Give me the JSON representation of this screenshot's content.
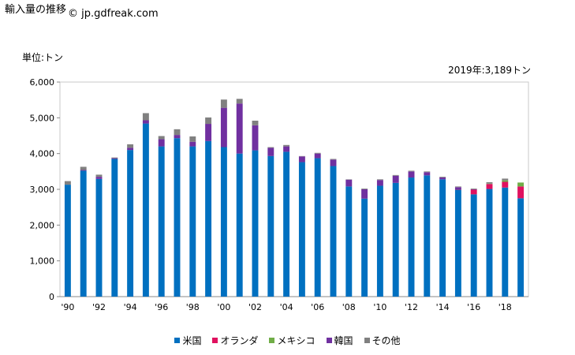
{
  "page": {
    "title": "輸入量の推移",
    "watermark": "© jp.gdfreak.com",
    "unit_label": "単位:トン",
    "latest_note": "2019年:3,189トン"
  },
  "chart_data": {
    "type": "bar",
    "stacked": true,
    "ylim": [
      0,
      6000
    ],
    "yticks": [
      "0",
      "1,000",
      "2,000",
      "3,000",
      "4,000",
      "5,000",
      "6,000"
    ],
    "ytick_values": [
      0,
      1000,
      2000,
      3000,
      4000,
      5000,
      6000
    ],
    "categories": [
      1990,
      1991,
      1992,
      1993,
      1994,
      1995,
      1996,
      1997,
      1998,
      1999,
      2000,
      2001,
      2002,
      2003,
      2004,
      2005,
      2006,
      2007,
      2008,
      2009,
      2010,
      2011,
      2012,
      2013,
      2014,
      2015,
      2016,
      2017,
      2018,
      2019
    ],
    "xtick_labels": [
      "'90",
      "'92",
      "'94",
      "'96",
      "'98",
      "'00",
      "'02",
      "'04",
      "'06",
      "'08",
      "'10",
      "'12",
      "'14",
      "'16",
      "'18"
    ],
    "xtick_years": [
      1990,
      1992,
      1994,
      1996,
      1998,
      2000,
      2002,
      2004,
      2006,
      2008,
      2010,
      2012,
      2014,
      2016,
      2018
    ],
    "legend_position": "bottom",
    "grid": false,
    "series": [
      {
        "name": "米国",
        "color": "#0070c0",
        "values": [
          3130,
          3520,
          3290,
          3850,
          4100,
          4840,
          4200,
          4430,
          4200,
          4350,
          4180,
          4000,
          4090,
          3930,
          4050,
          3760,
          3870,
          3650,
          3080,
          2740,
          3100,
          3180,
          3330,
          3390,
          3280,
          2990,
          2860,
          3010,
          3050,
          2750
        ]
      },
      {
        "name": "オランダ",
        "color": "#e0115f",
        "values": [
          0,
          0,
          0,
          0,
          0,
          0,
          0,
          0,
          0,
          0,
          0,
          0,
          0,
          0,
          0,
          0,
          0,
          0,
          0,
          0,
          0,
          0,
          0,
          0,
          0,
          10,
          130,
          140,
          160,
          330
        ]
      },
      {
        "name": "メキシコ",
        "color": "#70ad47",
        "values": [
          0,
          0,
          0,
          0,
          0,
          0,
          0,
          0,
          0,
          0,
          0,
          0,
          0,
          0,
          0,
          0,
          0,
          0,
          0,
          0,
          0,
          0,
          0,
          0,
          0,
          0,
          0,
          10,
          40,
          110
        ]
      },
      {
        "name": "韓国",
        "color": "#7030a0",
        "values": [
          0,
          20,
          60,
          20,
          60,
          90,
          200,
          90,
          130,
          480,
          1100,
          1400,
          700,
          230,
          150,
          160,
          130,
          180,
          190,
          260,
          160,
          200,
          170,
          90,
          50,
          60,
          10,
          0,
          0,
          0
        ]
      },
      {
        "name": "その他",
        "color": "#808080",
        "values": [
          100,
          90,
          60,
          20,
          100,
          200,
          90,
          160,
          150,
          180,
          230,
          130,
          130,
          20,
          40,
          10,
          20,
          20,
          10,
          20,
          20,
          20,
          20,
          20,
          20,
          20,
          20,
          40,
          50,
          0
        ]
      }
    ]
  }
}
